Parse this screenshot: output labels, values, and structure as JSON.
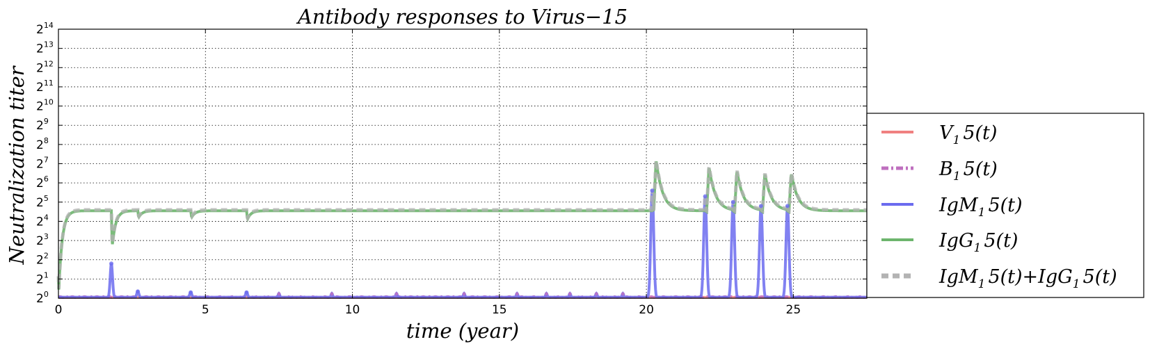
{
  "chart_data": {
    "type": "line",
    "title": "Antibody responses to Virus−15",
    "xlabel": "time (year)",
    "ylabel": "Neutralization titer",
    "xlim": [
      0,
      27.5
    ],
    "ylim": [
      0,
      14
    ],
    "y_scale": "log2",
    "x_ticks": [
      0,
      5,
      10,
      15,
      20,
      25
    ],
    "x_tick_labels": [
      "0",
      "5",
      "10",
      "15",
      "20",
      "25"
    ],
    "y_ticks": [
      0,
      1,
      2,
      3,
      4,
      5,
      6,
      7,
      8,
      9,
      10,
      11,
      12,
      13,
      14
    ],
    "y_tick_base": "2",
    "y_tick_exponents": [
      "0",
      "1",
      "2",
      "3",
      "4",
      "5",
      "6",
      "7",
      "8",
      "9",
      "10",
      "11",
      "12",
      "13",
      "14"
    ],
    "grid": true,
    "legend_position": "right, outside plot area",
    "infection_events": [
      {
        "t": 1.8,
        "igm_peak": 1.8,
        "igg_dip": 2.7,
        "igg_peak": 4.55
      },
      {
        "t": 2.7,
        "igm_peak": 0.35,
        "igg_dip": 4.2,
        "igg_peak": 4.55
      },
      {
        "t": 4.5,
        "igm_peak": 0.3,
        "igg_dip": 4.2,
        "igg_peak": 4.55
      },
      {
        "t": 6.4,
        "igm_peak": 0.3,
        "igg_dip": 4.1,
        "igg_peak": 4.55
      },
      {
        "t": 20.2,
        "igm_peak": 5.6,
        "igg_dip": 4.6,
        "igg_peak": 7.2
      },
      {
        "t": 22.0,
        "igm_peak": 5.3,
        "igg_dip": 4.5,
        "igg_peak": 6.85
      },
      {
        "t": 22.95,
        "igm_peak": 5.0,
        "igg_dip": 4.5,
        "igg_peak": 6.65
      },
      {
        "t": 23.9,
        "igm_peak": 4.8,
        "igg_dip": 4.5,
        "igg_peak": 6.5
      },
      {
        "t": 24.8,
        "igm_peak": 4.8,
        "igg_dip": 4.5,
        "igg_peak": 6.5
      }
    ],
    "igg_baseline": 4.55,
    "minor_igm_blips": [
      7.5,
      9.3,
      11.5,
      13.8,
      15.6,
      16.6,
      17.4,
      18.3,
      19.2
    ],
    "series": [
      {
        "name": "V_1 5(t)",
        "legend_main": "V",
        "legend_sub": "1",
        "legend_rest": "5(t)",
        "color": "#f08080",
        "style": "solid"
      },
      {
        "name": "B_1 5(t)",
        "legend_main": "B",
        "legend_sub": "1",
        "legend_rest": "5(t)",
        "color": "#bf6fbf",
        "style": "dashdot"
      },
      {
        "name": "IgM_1 5(t)",
        "legend_main": "IgM",
        "legend_sub": "1",
        "legend_rest": "5(t)",
        "color": "#6b6bef",
        "style": "solid"
      },
      {
        "name": "IgG_1 5(t)",
        "legend_main": "IgG",
        "legend_sub": "1",
        "legend_rest": "5(t)",
        "color": "#6db56d",
        "style": "solid"
      },
      {
        "name": "IgM_1 5(t)+IgG_1 5(t)",
        "legend_main": "IgM",
        "legend_sub": "1",
        "legend_rest": "5(t)+IgG",
        "legend_sub2": "1",
        "legend_rest2": "5(t)",
        "color": "#b3b3b3",
        "style": "dashed"
      }
    ]
  }
}
